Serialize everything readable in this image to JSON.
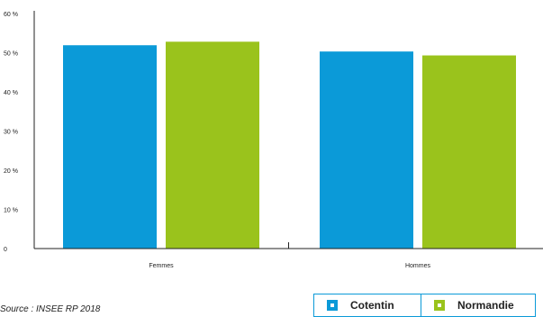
{
  "chart_data": {
    "type": "bar",
    "categories": [
      "Femmes",
      "Hommes"
    ],
    "series": [
      {
        "name": "Cotentin",
        "values": [
          51.9,
          50.3
        ],
        "color": "#0b9ad8"
      },
      {
        "name": "Normandie",
        "values": [
          52.8,
          49.3
        ],
        "color": "#9ac31c"
      }
    ],
    "ylim": [
      0,
      60
    ],
    "yticks": [
      {
        "value": 0,
        "label": "0"
      },
      {
        "value": 10,
        "label": "10 %"
      },
      {
        "value": 20,
        "label": "20 %"
      },
      {
        "value": 30,
        "label": "30 %"
      },
      {
        "value": 40,
        "label": "40 %"
      },
      {
        "value": 50,
        "label": "50 %"
      },
      {
        "value": 60,
        "label": "60 %"
      }
    ],
    "legend_position": "bottom-right",
    "grid": false
  },
  "source": "Source : INSEE RP 2018",
  "legend": {
    "items": [
      {
        "label": "Cotentin",
        "color": "#0b9ad8"
      },
      {
        "label": "Normandie",
        "color": "#9ac31c"
      }
    ]
  }
}
